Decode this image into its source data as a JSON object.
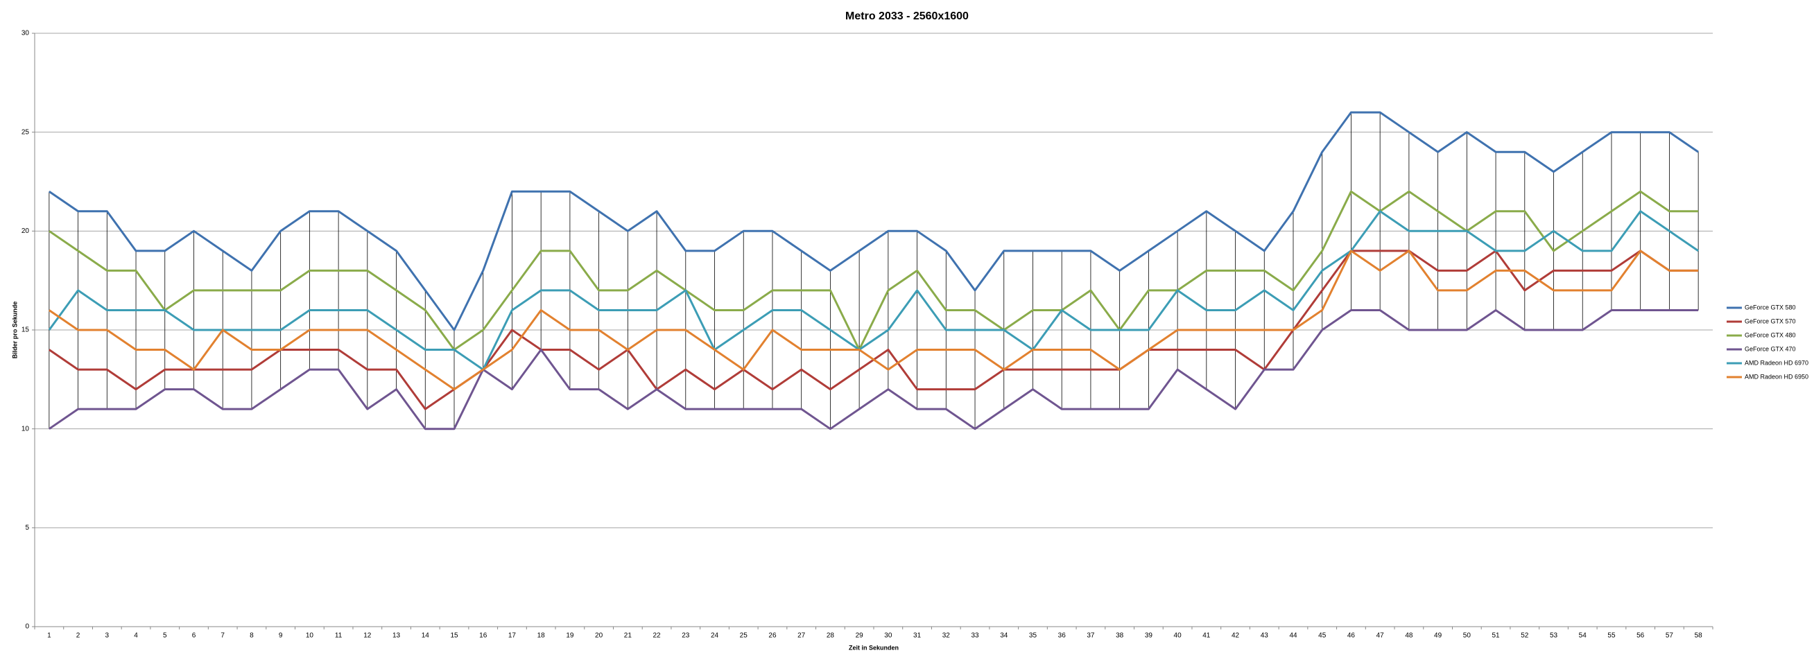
{
  "chart_data": {
    "type": "line",
    "title": "Metro 2033 - 2560x1600",
    "x_label": "Zeit in Sekunden",
    "y_label": "Bilder pro Sekunde",
    "x": [
      1,
      2,
      3,
      4,
      5,
      6,
      7,
      8,
      9,
      10,
      11,
      12,
      13,
      14,
      15,
      16,
      17,
      18,
      19,
      20,
      21,
      22,
      23,
      24,
      25,
      26,
      27,
      28,
      29,
      30,
      31,
      32,
      33,
      34,
      35,
      36,
      37,
      38,
      39,
      40,
      41,
      42,
      43,
      44,
      45,
      46,
      47,
      48,
      49,
      50,
      51,
      52,
      53,
      54,
      55,
      56,
      57,
      58
    ],
    "ylim": [
      0,
      30
    ],
    "yticks": [
      0,
      5,
      10,
      15,
      20,
      25,
      30
    ],
    "grid": true,
    "legend": "right",
    "high_low_lines": true,
    "series": [
      {
        "name": "GeForce GTX 580",
        "color": "#3f72af",
        "values": [
          22,
          21,
          21,
          19,
          19,
          20,
          19,
          18,
          20,
          21,
          21,
          20,
          19,
          17,
          15,
          18,
          22,
          22,
          22,
          21,
          20,
          21,
          19,
          19,
          20,
          20,
          19,
          18,
          19,
          20,
          20,
          19,
          17,
          19,
          19,
          19,
          19,
          18,
          19,
          20,
          21,
          20,
          19,
          21,
          24,
          26,
          26,
          25,
          24,
          25,
          24,
          24,
          23,
          24,
          25,
          25,
          25,
          24
        ]
      },
      {
        "name": "GeForce GTX 570",
        "color": "#b03c38",
        "values": [
          14,
          13,
          13,
          12,
          13,
          13,
          13,
          13,
          14,
          14,
          14,
          13,
          13,
          11,
          12,
          13,
          15,
          14,
          14,
          13,
          14,
          12,
          13,
          12,
          13,
          12,
          13,
          12,
          13,
          14,
          12,
          12,
          12,
          13,
          13,
          13,
          13,
          13,
          14,
          14,
          14,
          14,
          13,
          15,
          17,
          19,
          19,
          19,
          18,
          18,
          19,
          17,
          18,
          18,
          18,
          19,
          18,
          18
        ]
      },
      {
        "name": "GeForce GTX 480",
        "color": "#8aab4a",
        "values": [
          20,
          19,
          18,
          18,
          16,
          17,
          17,
          17,
          17,
          18,
          18,
          18,
          17,
          16,
          14,
          15,
          17,
          19,
          19,
          17,
          17,
          18,
          17,
          16,
          16,
          17,
          17,
          17,
          14,
          17,
          18,
          16,
          16,
          15,
          16,
          16,
          17,
          15,
          17,
          17,
          18,
          18,
          18,
          17,
          19,
          22,
          21,
          22,
          21,
          20,
          21,
          21,
          19,
          20,
          21,
          22,
          21,
          21
        ]
      },
      {
        "name": "GeForce GTX 470",
        "color": "#6f5590",
        "values": [
          10,
          11,
          11,
          11,
          12,
          12,
          11,
          11,
          12,
          13,
          13,
          11,
          12,
          10,
          10,
          13,
          12,
          14,
          12,
          12,
          11,
          12,
          11,
          11,
          11,
          11,
          11,
          10,
          11,
          12,
          11,
          11,
          10,
          11,
          12,
          11,
          11,
          11,
          11,
          13,
          12,
          11,
          13,
          13,
          15,
          16,
          16,
          15,
          15,
          15,
          16,
          15,
          15,
          15,
          16,
          16,
          16,
          16
        ]
      },
      {
        "name": "AMD Radeon HD 6970",
        "color": "#3c9db5",
        "values": [
          15,
          17,
          16,
          16,
          16,
          15,
          15,
          15,
          15,
          16,
          16,
          16,
          15,
          14,
          14,
          13,
          16,
          17,
          17,
          16,
          16,
          16,
          17,
          14,
          15,
          16,
          16,
          15,
          14,
          15,
          17,
          15,
          15,
          15,
          14,
          16,
          15,
          15,
          15,
          17,
          16,
          16,
          17,
          16,
          18,
          19,
          21,
          20,
          20,
          20,
          19,
          19,
          20,
          19,
          19,
          21,
          20,
          19
        ]
      },
      {
        "name": "AMD Radeon HD 6950",
        "color": "#e2812f",
        "values": [
          16,
          15,
          15,
          14,
          14,
          13,
          15,
          14,
          14,
          15,
          15,
          15,
          14,
          13,
          12,
          13,
          14,
          16,
          15,
          15,
          14,
          15,
          15,
          14,
          13,
          15,
          14,
          14,
          14,
          13,
          14,
          14,
          14,
          13,
          14,
          14,
          14,
          13,
          14,
          15,
          15,
          15,
          15,
          15,
          16,
          19,
          18,
          19,
          17,
          17,
          18,
          18,
          17,
          17,
          17,
          19,
          18,
          18
        ]
      }
    ]
  }
}
